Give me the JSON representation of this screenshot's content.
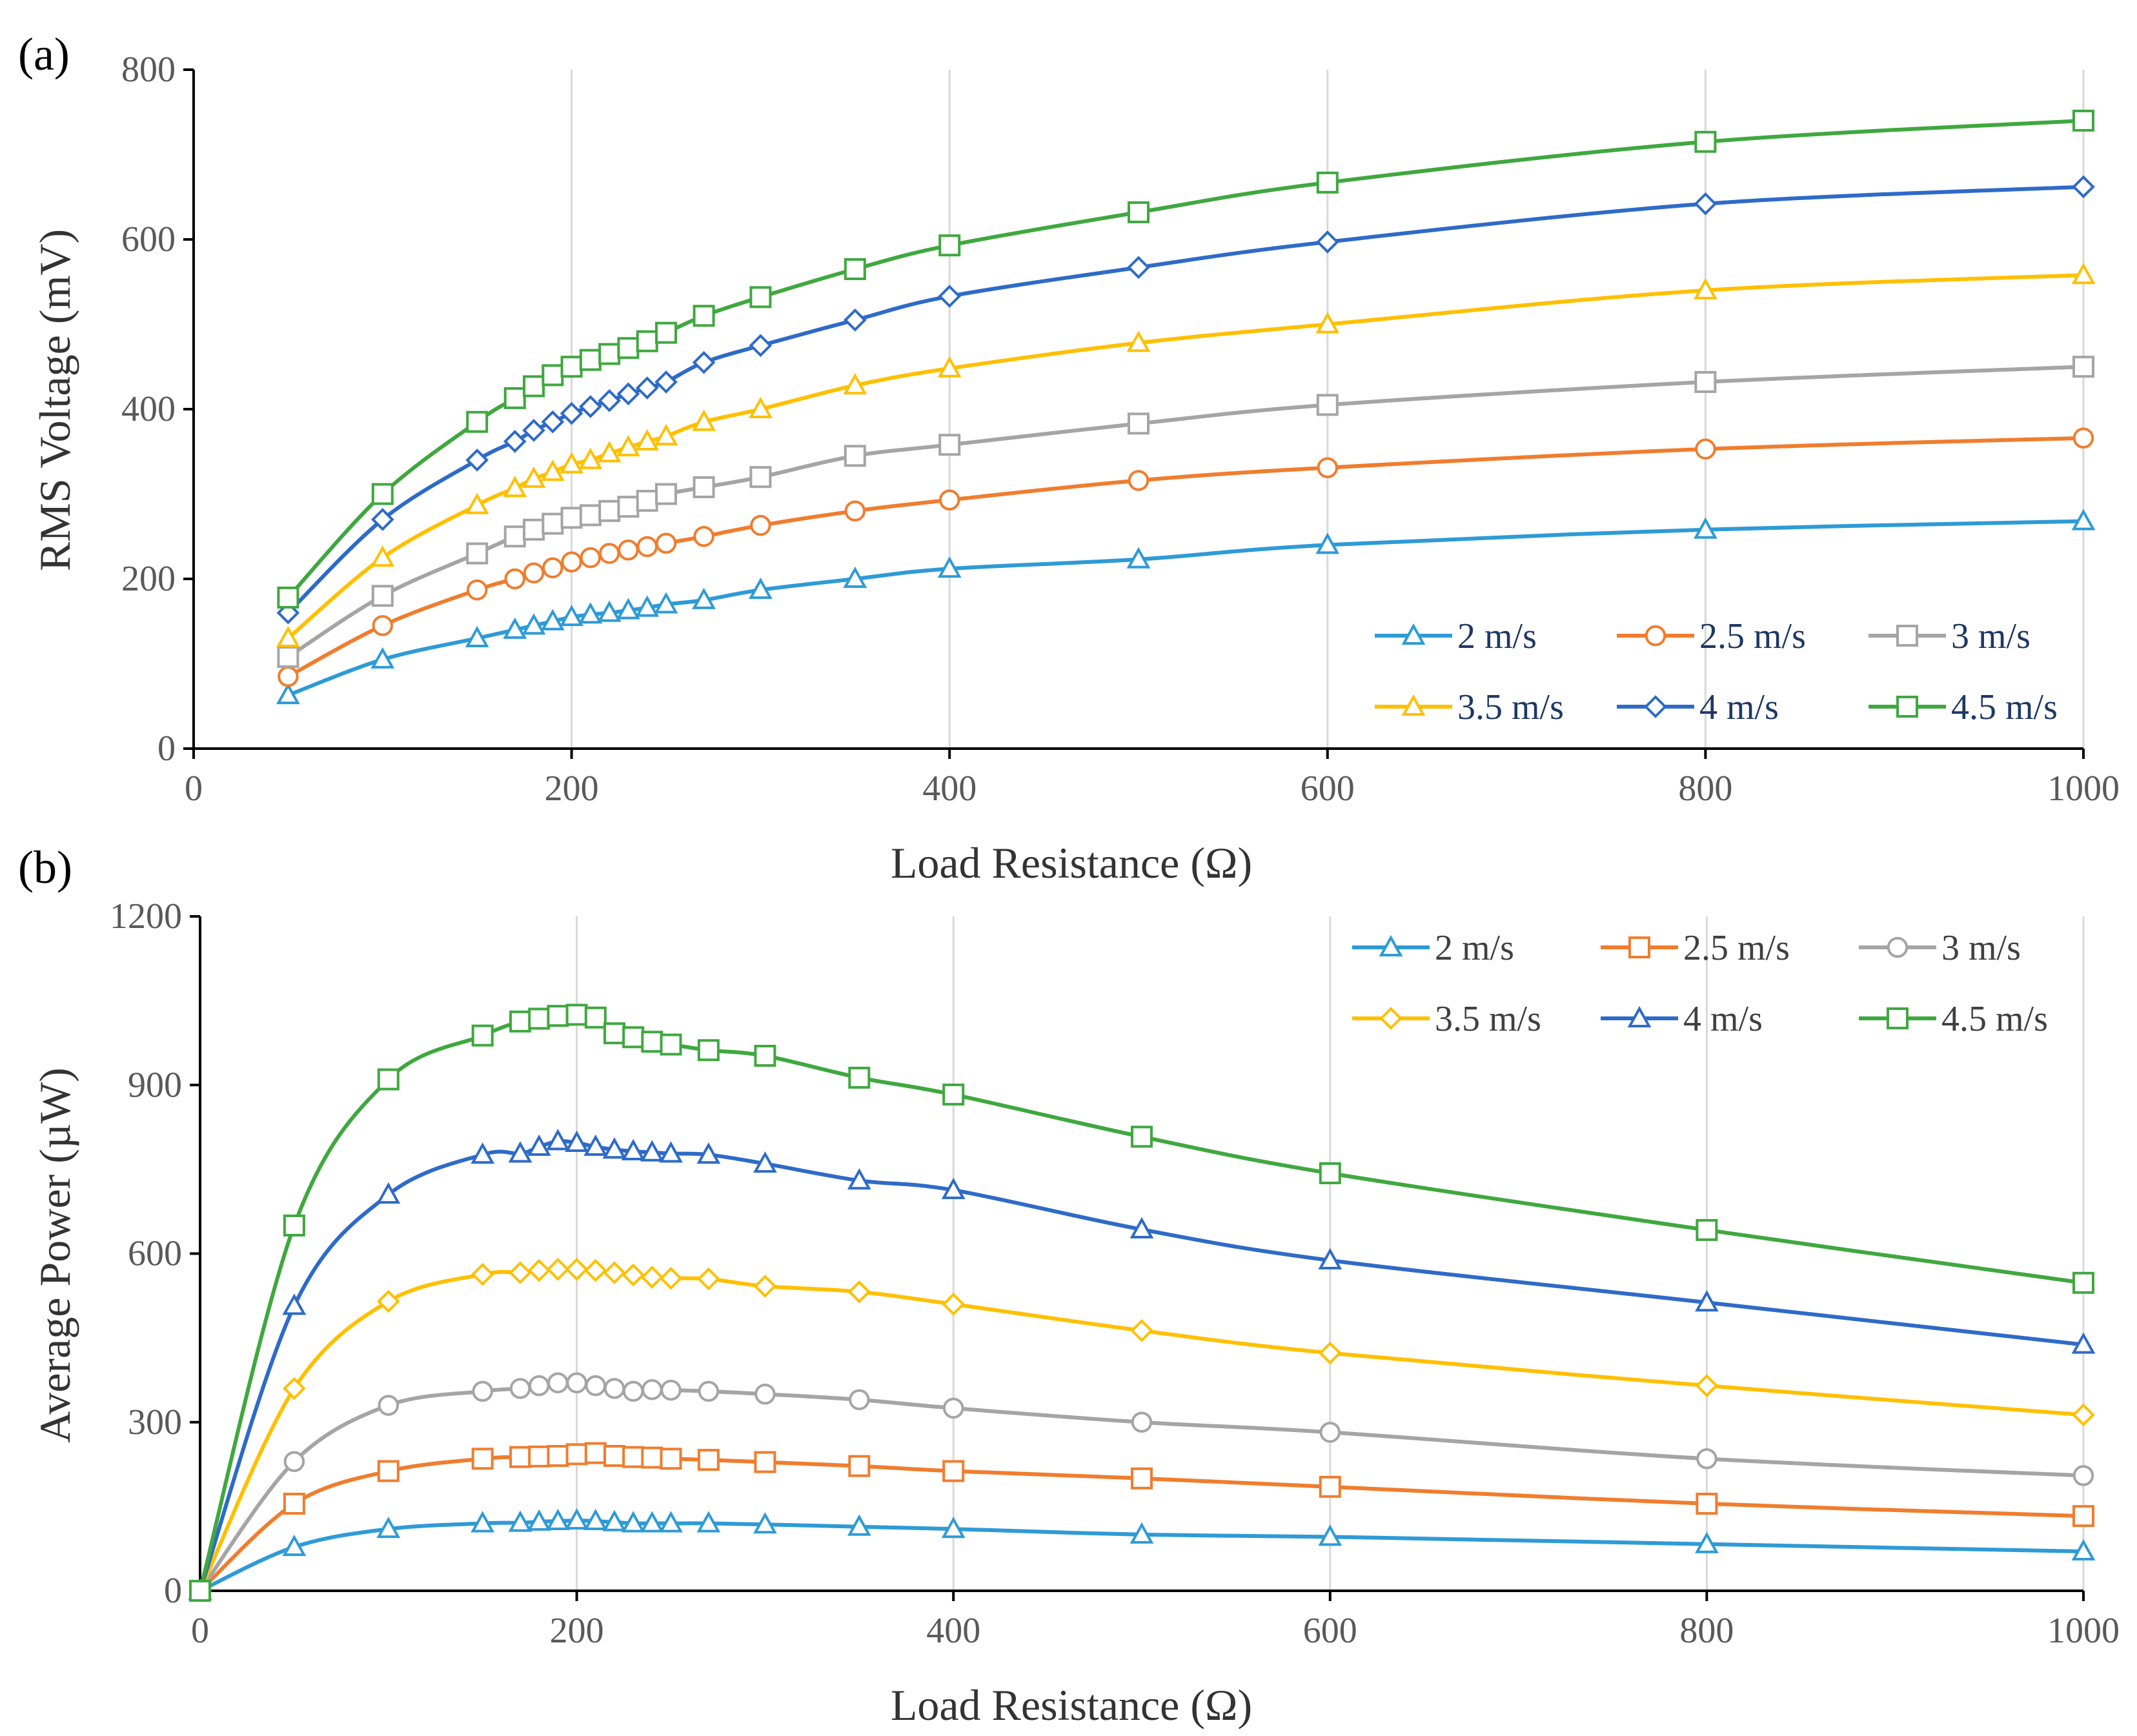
{
  "chart_data": [
    {
      "panel_label": "(a)",
      "type": "line",
      "xlabel": "Load Resistance (Ω)",
      "ylabel": "RMS Voltage (mV)",
      "xlim": [
        0,
        1000
      ],
      "ylim": [
        0,
        800
      ],
      "xticks": [
        0,
        200,
        400,
        600,
        800,
        1000
      ],
      "yticks": [
        0,
        200,
        400,
        600,
        800
      ],
      "legend": "bottom-right",
      "legend_text_color": "#1F3864",
      "x": [
        50,
        100,
        150,
        170,
        180,
        190,
        200,
        210,
        220,
        230,
        240,
        250,
        270,
        300,
        350,
        400,
        500,
        600,
        800,
        1000
      ],
      "series": [
        {
          "name": "2 m/s",
          "color": "#2E9BD6",
          "marker": "triangle",
          "values": [
            63,
            105,
            130,
            140,
            145,
            150,
            155,
            158,
            160,
            163,
            166,
            170,
            175,
            187,
            200,
            212,
            223,
            240,
            258,
            268
          ]
        },
        {
          "name": "2.5 m/s",
          "color": "#F07D2E",
          "marker": "circle",
          "values": [
            85,
            145,
            187,
            200,
            207,
            213,
            220,
            225,
            230,
            234,
            238,
            242,
            250,
            263,
            280,
            293,
            316,
            331,
            353,
            366
          ]
        },
        {
          "name": "3 m/s",
          "color": "#A5A5A5",
          "marker": "square",
          "values": [
            108,
            180,
            230,
            250,
            258,
            265,
            272,
            275,
            280,
            285,
            292,
            300,
            308,
            320,
            345,
            358,
            383,
            405,
            432,
            450
          ]
        },
        {
          "name": "3.5 m/s",
          "color": "#FFC000",
          "marker": "triangle",
          "values": [
            130,
            225,
            287,
            307,
            318,
            326,
            335,
            340,
            348,
            355,
            362,
            368,
            385,
            400,
            428,
            448,
            478,
            500,
            540,
            558
          ]
        },
        {
          "name": "4 m/s",
          "color": "#2E6BC8",
          "marker": "diamond",
          "values": [
            160,
            270,
            340,
            362,
            375,
            385,
            395,
            403,
            410,
            418,
            425,
            432,
            455,
            475,
            505,
            533,
            567,
            597,
            642,
            662
          ]
        },
        {
          "name": "4.5 m/s",
          "color": "#3FA83F",
          "marker": "square",
          "values": [
            178,
            300,
            385,
            413,
            427,
            440,
            450,
            458,
            465,
            472,
            480,
            490,
            510,
            532,
            565,
            593,
            632,
            667,
            715,
            740
          ]
        }
      ]
    },
    {
      "panel_label": "(b)",
      "type": "line",
      "xlabel": "Load Resistance (Ω)",
      "ylabel": "Average Power (µW)",
      "xlim": [
        0,
        1000
      ],
      "ylim": [
        0,
        1200
      ],
      "xticks": [
        0,
        200,
        400,
        600,
        800,
        1000
      ],
      "yticks": [
        0,
        300,
        600,
        900,
        1200
      ],
      "legend": "top-right",
      "legend_text_color": "#404040",
      "x": [
        0,
        50,
        100,
        150,
        170,
        180,
        190,
        200,
        210,
        220,
        230,
        240,
        250,
        270,
        300,
        350,
        400,
        500,
        600,
        800,
        1000
      ],
      "series": [
        {
          "name": "2 m/s",
          "color": "#2E9BD6",
          "marker": "triangle",
          "values": [
            0,
            78,
            110,
            120,
            121,
            123,
            124,
            125,
            124,
            122,
            120,
            120,
            120,
            120,
            118,
            114,
            110,
            100,
            96,
            83,
            70
          ]
        },
        {
          "name": "2.5 m/s",
          "color": "#F07D2E",
          "marker": "square",
          "values": [
            0,
            155,
            213,
            235,
            238,
            239,
            240,
            243,
            245,
            240,
            238,
            237,
            235,
            233,
            229,
            222,
            213,
            200,
            185,
            155,
            133
          ]
        },
        {
          "name": "3 m/s",
          "color": "#A5A5A5",
          "marker": "circle",
          "values": [
            0,
            230,
            330,
            355,
            360,
            365,
            370,
            370,
            365,
            360,
            355,
            358,
            357,
            355,
            350,
            340,
            325,
            300,
            282,
            235,
            205
          ]
        },
        {
          "name": "3.5 m/s",
          "color": "#FFC000",
          "marker": "diamond",
          "values": [
            0,
            360,
            515,
            563,
            566,
            570,
            572,
            572,
            570,
            566,
            562,
            558,
            556,
            555,
            542,
            532,
            510,
            463,
            423,
            365,
            313
          ]
        },
        {
          "name": "4 m/s",
          "color": "#2E6BC8",
          "marker": "triangle",
          "values": [
            0,
            507,
            705,
            776,
            778,
            790,
            800,
            797,
            790,
            785,
            782,
            780,
            778,
            776,
            760,
            730,
            713,
            643,
            588,
            513,
            438
          ]
        },
        {
          "name": "4.5 m/s",
          "color": "#3FA83F",
          "marker": "square",
          "values": [
            0,
            650,
            910,
            988,
            1013,
            1018,
            1023,
            1025,
            1020,
            992,
            985,
            977,
            972,
            962,
            952,
            913,
            883,
            808,
            743,
            642,
            548
          ]
        }
      ]
    }
  ]
}
